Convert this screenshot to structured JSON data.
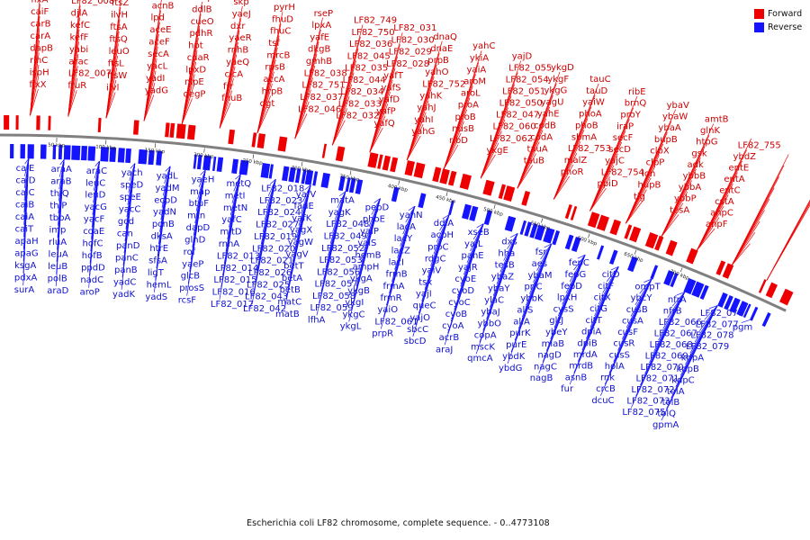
{
  "caption": "Escherichia coli LF82 chromosome, complete sequence. - 0..4773108",
  "legend": {
    "forward": {
      "label": "Forward",
      "color": "#ee0000"
    },
    "reverse": {
      "label": "Reverse",
      "color": "#1414ff"
    }
  },
  "ticks": [
    "50 kbp",
    "100 kbp",
    "150 kbp",
    "200 kbp",
    "250 kbp",
    "300 kbp",
    "350 kbp",
    "400 kbp",
    "450 kbp",
    "500 kbp",
    "550 kbp",
    "600 kbp",
    "650 kbp",
    "700 kbp"
  ],
  "forward_genes": [
    "fixB",
    "fixA",
    "caiF",
    "carB",
    "carA",
    "dapB",
    "rihC",
    "ispH",
    "fixX",
    "fixC",
    "LF82_008",
    "djlA",
    "kefC",
    "kefF",
    "yabi",
    "arac",
    "LF82_007",
    "fruR",
    "murG",
    "ftsZ",
    "ilvH",
    "ftsA",
    "ftsQ",
    "leuO",
    "ftsL",
    "ftsW",
    "ilvl",
    "secM",
    "acnB",
    "lpd",
    "aceE",
    "aceF",
    "secA",
    "yacL",
    "yadI",
    "yadG",
    "ampE",
    "ddlB",
    "cueO",
    "pdhR",
    "hpt",
    "cdaR",
    "lpxD",
    "nlpE",
    "degP",
    "skp",
    "yaeJ",
    "dxr",
    "yaeR",
    "rnhB",
    "yaeQ",
    "clcA",
    "frr",
    "fhuB",
    "pyrH",
    "fhuD",
    "fhuC",
    "tsf",
    "mrcB",
    "rpsB",
    "accA",
    "hrpB",
    "dgt",
    "rseP",
    "lpxA",
    "ybaF",
    "dkgB",
    "gmhB",
    "LF82_038",
    "LF82_751",
    "LF82_037",
    "LF82_046",
    "LF82_749",
    "LF82_750",
    "LF82_036",
    "LF82_045",
    "LF82_035",
    "LF82_044",
    "LF82_034",
    "LF82_033",
    "LF82_032",
    "LF82_031",
    "LF82_030",
    "LF82_029",
    "LF82_028",
    "yafT",
    "yafS",
    "yafD",
    "yafE",
    "yafP",
    "yafQ",
    "dnaQ",
    "dnaE",
    "yafK",
    "yagU",
    "prpR",
    "prpC",
    "prpD",
    "prpE",
    "prpB",
    "yahO",
    "LF82_752",
    "yahK",
    "yahJ",
    "yahI",
    "yahG",
    "yahC",
    "ykiA",
    "yaiA",
    "aroM",
    "aroL",
    "yaiA2",
    "proA",
    "proB",
    "nusB",
    "ribD",
    "yajD",
    "yajC",
    "ispA",
    "mrcA",
    "LF82_055",
    "LF82_054",
    "LF82_053",
    "LF82_051",
    "LF82_050",
    "LF82_047",
    "LF82_060",
    "LF82_062",
    "ykgE",
    "ykgD",
    "ykgF",
    "ykgG",
    "yahE",
    "codB",
    "codA",
    "tauA",
    "tauB",
    "tauC",
    "tauD",
    "yail",
    "yaiW",
    "yaiY",
    "phoA",
    "phoB",
    "sbmA",
    "LF82_753",
    "malZ",
    "phoR",
    "ribE",
    "brnQ",
    "proY",
    "iraP",
    "secF",
    "secD",
    "yajC2",
    "LF82_754",
    "ppiD",
    "ybaV",
    "ybaW",
    "ybaA",
    "bupB",
    "clpX",
    "clpP",
    "lon",
    "hupB",
    "tig",
    "amtB",
    "glnK",
    "htpG",
    "gsk",
    "adk",
    "ybbB",
    "ybbA",
    "ybbP",
    "tesA",
    "ybaT",
    "LF82_755",
    "ybdZ",
    "entE",
    "entA",
    "entC",
    "entF",
    "fepA",
    "fes",
    "cstA",
    "ahpC",
    "ahpF",
    "ybeM",
    "gltI",
    "gltL",
    "gltK",
    "phr",
    "sdhB",
    "sdhA",
    "cydA",
    "sucA",
    "sucB",
    "sdhC",
    "galM",
    "modA",
    "GipA",
    "ybhJ",
    "ybhI"
  ],
  "reverse_genes": [
    "caiE",
    "caiD",
    "caiC",
    "caiB",
    "caiA",
    "caiT",
    "apaH",
    "apaG",
    "ksgA",
    "pdxA",
    "surA",
    "araA",
    "araB",
    "thiQ",
    "thiP",
    "tbpA",
    "imp",
    "rluA",
    "fruR",
    "leuA",
    "leuB",
    "polB",
    "araD",
    "araC",
    "leuC",
    "leuD",
    "yacG",
    "yacF",
    "coaE",
    "hofC",
    "hofB",
    "ppdD",
    "nadC",
    "aroP",
    "yach",
    "speD",
    "speE",
    "yacC",
    "gcd",
    "can",
    "panD",
    "panC",
    "panB",
    "yadC",
    "yadK",
    "yadL",
    "yadM",
    "ecpD",
    "yadN",
    "pcnB",
    "dksA",
    "htrE",
    "sfsA",
    "ligT",
    "hemL",
    "yadS",
    "yaeH",
    "map",
    "btuF",
    "mtn",
    "dapD",
    "glnD",
    "rof",
    "yaeP",
    "glcB",
    "prosS",
    "rcsF",
    "metQ",
    "metI",
    "metN",
    "yafC",
    "mltD",
    "rnhA",
    "LF82_013",
    "LF82_014",
    "LF82_015",
    "LF82_016",
    "LF82_017",
    "LF82_018",
    "LF82_023",
    "LF82_024",
    "LF82_027",
    "LF82_019",
    "LF82_020",
    "LF82_021",
    "LF82_026",
    "LF82_025",
    "LF82_043",
    "LF82_042",
    "yafV",
    "fadE",
    "yafK",
    "yagX",
    "yagW",
    "yagV",
    "betT",
    "betA",
    "betB",
    "matC",
    "matB",
    "matA",
    "yagK",
    "LF82_048",
    "LF82_049",
    "LF82_052",
    "LF82_053",
    "LF82_056",
    "LF82_057",
    "LF82_058",
    "LF82_059",
    "lfhA",
    "pepD",
    "phoE",
    "proB",
    "yaiP",
    "yaiS",
    "hemB",
    "ampH",
    "ykgA",
    "ykgB",
    "ykgI",
    "ykgC",
    "ykgL",
    "yahN",
    "yahM",
    "yaiI",
    "lacA",
    "lacY",
    "lacZ",
    "lacI",
    "frmB",
    "frmA",
    "frmR",
    "yaiO",
    "yaiQ",
    "LF82_061",
    "ykgK",
    "prpR",
    "ddlA",
    "acpH",
    "proC",
    "rdgC",
    "yaiV",
    "tsx",
    "yajI",
    "queC",
    "yajO",
    "sbcC",
    "sbcD",
    "xseB",
    "yajL",
    "panE",
    "yajR",
    "cyoE",
    "cyoD",
    "cyoC",
    "cyoB",
    "cyoA",
    "acrB",
    "yajQ",
    "araJ",
    "dxs",
    "ispA",
    "mak",
    "hha",
    "tesB",
    "yajG",
    "ybaZ",
    "ybaY",
    "ylaC",
    "acrR",
    "yajL2",
    "ybaJ",
    "ybbO",
    "cnu",
    "copA",
    "mscK",
    "qmcA",
    "fsr",
    "aes",
    "ybaM",
    "priC",
    "ybaN",
    "ybbK",
    "ybbJ",
    "glsA",
    "allS",
    "allA",
    "allR",
    "purK",
    "purE",
    "ybdK",
    "ybdG",
    "fepC",
    "fepG",
    "fepD",
    "ybdJ",
    "ybdL",
    "ybdM",
    "ybdN",
    "yaiP2",
    "lpxH",
    "ppiB",
    "cysS",
    "ybeL",
    "ybeN",
    "ybeK",
    "ybeJ",
    "gltJ",
    "ybeY",
    "ybeX",
    "lnt",
    "miaB",
    "ubiF",
    "nagD",
    "nagC",
    "nagA",
    "nagB",
    "citD",
    "citE",
    "citF",
    "citX",
    "citG",
    "citT",
    "dpiA",
    "dpiB",
    "mrdA",
    "mrdB",
    "rlmH",
    "ybeB",
    "cobC",
    "ybeL2",
    "asnB",
    "nagE",
    "fur",
    "ompT",
    "ybcY",
    "cusB",
    "cusA",
    "cusF",
    "cusR",
    "cusS",
    "holA",
    "rnk",
    "crcB",
    "citE2",
    "dcuC",
    "nfrA",
    "nfrB",
    "ybcW",
    "ybcV"
  ],
  "displayed_labels": {
    "fwd": [
      "fixB",
      "fixA",
      "caiF",
      "carB",
      "carA",
      "dapB",
      "rihC",
      "ispH",
      "fixX",
      "fixC",
      "LF82_008",
      "djlA",
      "kefC",
      "kefF",
      "yabi",
      "arac",
      "LF82_007",
      "fruR",
      "murG",
      "ftsZ",
      "ilvH",
      "ftsA",
      "ftsQ",
      "leuO",
      "ftsL",
      "ftsW",
      "ilvl",
      "secM",
      "acnB",
      "lpd",
      "aceE",
      "aceF",
      "secA",
      "yacL",
      "yadI",
      "yadG",
      "ampE",
      "ddlB",
      "cueO",
      "pdhR",
      "hpt",
      "cdaR",
      "lpxD",
      "nlpE",
      "degP",
      "skp",
      "yaeJ",
      "dxr",
      "yaeR",
      "rnhB",
      "yaeQ",
      "clcA",
      "frr",
      "fhuB",
      "pyrH",
      "fhuD",
      "fhuC",
      "tsf",
      "mrcB",
      "rpsB",
      "accA",
      "hrpB",
      "dgt",
      "rseP",
      "lpxA",
      "yafE",
      "dkgB",
      "gmhB",
      "LF82_038",
      "LF82_751",
      "LF82_037",
      "LF82_046",
      "LF82_749",
      "LF82_750",
      "LF82_036",
      "LF82_045",
      "LF82_035",
      "LF82_044",
      "LF82_034",
      "LF82_033",
      "LF82_032",
      "LF82_031",
      "LF82_030",
      "LF82_029",
      "LF82_028",
      "yafT",
      "yafS",
      "yafD",
      "yafP",
      "yafQ",
      "dnaQ",
      "dnaE",
      "prpB",
      "yahO",
      "LF82_752",
      "yahK",
      "yahJ",
      "yahI",
      "yahG",
      "yahC",
      "ykiA",
      "yaiA",
      "aroM",
      "aroL",
      "proA",
      "proB",
      "nusB",
      "ribD",
      "yajD",
      "LF82_055",
      "LF82_054",
      "LF82_051",
      "LF82_050",
      "LF82_047",
      "LF82_060",
      "LF82_062",
      "ykgE",
      "ykgD",
      "ykgF",
      "ykgG",
      "yagU",
      "yahE",
      "codB",
      "codA",
      "tauA",
      "tauB",
      "tauC",
      "tauD",
      "yaiW",
      "phoA",
      "phoB",
      "sbmA",
      "LF82_753",
      "malZ",
      "phoR",
      "ribE",
      "brnQ",
      "proY",
      "iraP",
      "secF",
      "secD",
      "yajC",
      "LF82_754",
      "ppiD",
      "ybaV",
      "ybaW",
      "ybaA",
      "bupB",
      "clpX",
      "clpP",
      "lon",
      "hupB",
      "tig",
      "amtB",
      "glnK",
      "htpG",
      "gsk",
      "adk",
      "ybbB",
      "ybbA",
      "ybbP",
      "tesA",
      "ybaT",
      "LF82_755",
      "ybdZ",
      "entE",
      "entA",
      "entC",
      "cstA",
      "ahpC",
      "ahpF",
      "ybeM",
      "gltI",
      "gltL",
      "sdhB",
      "sdhA",
      "cydA",
      "sucA",
      "sucB",
      "galM",
      "modA",
      "GipA",
      "ybhJ",
      "phr"
    ],
    "rev": [
      "caiE",
      "caiD",
      "caiC",
      "caiB",
      "caiA",
      "caiT",
      "apaH",
      "apaG",
      "ksgA",
      "pdxA",
      "surA",
      "araA",
      "araB",
      "thiQ",
      "thiP",
      "tbpA",
      "imp",
      "rluA",
      "leuA",
      "leuB",
      "polB",
      "araD",
      "araC",
      "leuC",
      "leuD",
      "yacG",
      "yacF",
      "coaE",
      "hofC",
      "hofB",
      "ppdD",
      "nadC",
      "aroP",
      "yach",
      "speD",
      "speE",
      "yacC",
      "gcd",
      "can",
      "panD",
      "panC",
      "panB",
      "yadC",
      "yadK",
      "yadL",
      "yadM",
      "ecpD",
      "yadN",
      "pcnB",
      "dksA",
      "htrE",
      "sfsA",
      "ligT",
      "hemL",
      "yadS",
      "yaeH",
      "map",
      "btuF",
      "mtn",
      "dapD",
      "glnD",
      "rof",
      "yaeP",
      "glcB",
      "prosS",
      "rcsF",
      "metQ",
      "metI",
      "metN",
      "yafC",
      "mltD",
      "rnhA",
      "LF82_013",
      "LF82_014",
      "LF82_015",
      "LF82_016",
      "LF82_017",
      "LF82_018",
      "LF82_023",
      "LF82_024",
      "LF82_027",
      "LF82_019",
      "LF82_020",
      "LF82_021",
      "LF82_026",
      "LF82_025",
      "LF82_043",
      "LF82_042",
      "yafV",
      "fadE",
      "yafK",
      "yagX",
      "yagW",
      "yagV",
      "betT",
      "betA",
      "betB",
      "matC",
      "matB",
      "matA",
      "yagK",
      "LF82_048",
      "LF82_049",
      "LF82_052",
      "LF82_053",
      "LF82_056",
      "LF82_057",
      "LF82_058",
      "LF82_059",
      "lfhA",
      "pepD",
      "phoE",
      "yaiP",
      "yaiS",
      "hemB",
      "ampH",
      "ykgA",
      "ykgB",
      "ykgI",
      "ykgC",
      "ykgL",
      "yahN",
      "lacA",
      "lacY",
      "lacZ",
      "lacI",
      "frmB",
      "frmA",
      "frmR",
      "yaiO",
      "LF82_061",
      "prpR",
      "ddlA",
      "acpH",
      "proC",
      "rdgC",
      "yaiV",
      "tsx",
      "yajI",
      "queC",
      "yajO",
      "sbcC",
      "sbcD",
      "xseB",
      "yajL",
      "panE",
      "yajR",
      "cyoE",
      "cyoD",
      "cyoC",
      "cyoB",
      "cyoA",
      "acrB",
      "araJ",
      "dxs",
      "hha",
      "tesB",
      "ybaZ",
      "ybaY",
      "ylaC",
      "ybaJ",
      "ybbO",
      "copA",
      "mscK",
      "qmcA",
      "fsr",
      "aes",
      "ybaM",
      "priC",
      "ybbK",
      "allS",
      "allA",
      "purK",
      "purE",
      "ybdK",
      "ybdG",
      "fepC",
      "fepG",
      "fepD",
      "lpxH",
      "cysS",
      "gltJ",
      "ybeY",
      "miaB",
      "nagD",
      "nagC",
      "nagB",
      "citD",
      "citF",
      "citX",
      "citG",
      "citT",
      "dpiA",
      "dpiB",
      "mrdA",
      "mrdB",
      "asnB",
      "fur",
      "ompT",
      "ybcY",
      "cusB",
      "cusA",
      "cusF",
      "cusR",
      "cusS",
      "holA",
      "rnk",
      "crcB",
      "dcuC",
      "nfrA",
      "nfrB",
      "LF82_066",
      "LF82_067",
      "LF82_068",
      "LF82_069",
      "LF82_070",
      "LF82_071",
      "LF82_072",
      "LF82_073",
      "LF82_075",
      "LF82_076",
      "LF82_077",
      "LF82_078",
      "LF82_079",
      "kdpA",
      "kdpB",
      "kdpC",
      "tolA",
      "tolB",
      "tolQ",
      "gpmA",
      "pgm"
    ]
  }
}
